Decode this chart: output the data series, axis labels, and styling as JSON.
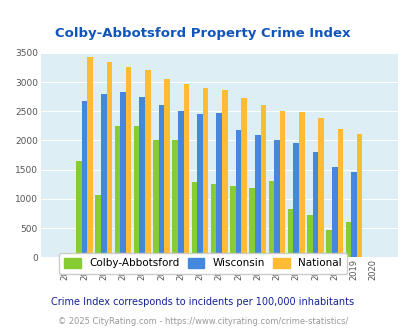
{
  "title": "Colby-Abbotsford Property Crime Index",
  "years": [
    2004,
    2005,
    2006,
    2007,
    2008,
    2009,
    2010,
    2011,
    2012,
    2013,
    2014,
    2015,
    2016,
    2017,
    2018,
    2019,
    2020
  ],
  "colby": [
    0,
    1650,
    1060,
    2250,
    2250,
    2000,
    2000,
    1290,
    1250,
    1220,
    1180,
    1300,
    820,
    730,
    470,
    600,
    0
  ],
  "wisconsin": [
    0,
    2670,
    2800,
    2830,
    2750,
    2600,
    2510,
    2460,
    2470,
    2180,
    2090,
    2000,
    1950,
    1800,
    1550,
    1460,
    0
  ],
  "national": [
    0,
    3430,
    3340,
    3260,
    3210,
    3050,
    2960,
    2900,
    2860,
    2730,
    2600,
    2500,
    2480,
    2380,
    2200,
    2110,
    0
  ],
  "colors": {
    "colby": "#88cc33",
    "wisconsin": "#4488dd",
    "national": "#ffbb33"
  },
  "bg_color": "#ddeef5",
  "ylim": [
    0,
    3500
  ],
  "yticks": [
    0,
    500,
    1000,
    1500,
    2000,
    2500,
    3000,
    3500
  ],
  "legend_labels": [
    "Colby-Abbotsford",
    "Wisconsin",
    "National"
  ],
  "footnote1": "Crime Index corresponds to incidents per 100,000 inhabitants",
  "footnote2": "© 2025 CityRating.com - https://www.cityrating.com/crime-statistics/",
  "title_color": "#1155bb",
  "footnote1_color": "#112299",
  "footnote2_color": "#999999"
}
